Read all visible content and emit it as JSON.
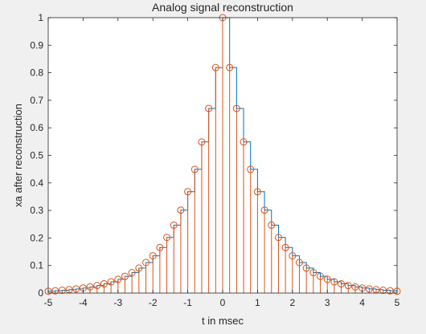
{
  "figure": {
    "background": "#f0f0f0",
    "axes_background": "#ffffff"
  },
  "chart_data": {
    "type": "line",
    "title": "Analog signal reconstruction",
    "xlabel": "t in msec",
    "ylabel": "xa after reconstruction",
    "xlim": [
      -5,
      5
    ],
    "ylim": [
      0,
      1
    ],
    "xticks": [
      -5,
      -4,
      -3,
      -2,
      -1,
      0,
      1,
      2,
      3,
      4,
      5
    ],
    "xtick_labels": [
      "-5",
      "-4",
      "-3",
      "-2",
      "-1",
      "0",
      "1",
      "2",
      "3",
      "4",
      "5"
    ],
    "yticks": [
      0,
      0.1,
      0.2,
      0.3,
      0.4,
      0.5,
      0.6,
      0.7,
      0.8,
      0.9,
      1
    ],
    "ytick_labels": [
      "0",
      "0.1",
      "0.2",
      "0.3",
      "0.4",
      "0.5",
      "0.6",
      "0.7",
      "0.8",
      "0.9",
      "1"
    ],
    "grid": false,
    "box": true,
    "series": [
      {
        "style": "stairs",
        "color": "#0072bd",
        "x": [
          -5,
          -4.8,
          -4.6,
          -4.4,
          -4.2,
          -4,
          -3.8,
          -3.6,
          -3.4,
          -3.2,
          -3,
          -2.8,
          -2.6,
          -2.4,
          -2.2,
          -2,
          -1.8,
          -1.6,
          -1.4,
          -1.2,
          -1,
          -0.8,
          -0.6,
          -0.4,
          -0.2,
          0,
          0.2,
          0.4,
          0.6,
          0.8,
          1,
          1.2,
          1.4,
          1.6,
          1.8,
          2,
          2.2,
          2.4,
          2.6,
          2.8,
          3,
          3.2,
          3.4,
          3.6,
          3.8,
          4,
          4.2,
          4.4,
          4.6,
          4.8,
          5
        ],
        "y": [
          0.0067,
          0.0082,
          0.0101,
          0.0123,
          0.015,
          0.0183,
          0.0224,
          0.0273,
          0.0334,
          0.0408,
          0.0498,
          0.0608,
          0.0743,
          0.0907,
          0.1108,
          0.1353,
          0.1653,
          0.2019,
          0.2466,
          0.3012,
          0.3679,
          0.4493,
          0.5488,
          0.6703,
          0.8187,
          1,
          0.8187,
          0.6703,
          0.5488,
          0.4493,
          0.3679,
          0.3012,
          0.2466,
          0.2019,
          0.1653,
          0.1353,
          0.1108,
          0.0907,
          0.0743,
          0.0608,
          0.0498,
          0.0408,
          0.0334,
          0.0273,
          0.0224,
          0.0183,
          0.015,
          0.0123,
          0.0101,
          0.0082,
          0.0067
        ]
      },
      {
        "style": "stem",
        "color": "#d95319",
        "marker": "circle",
        "x": [
          -5,
          -4.8,
          -4.6,
          -4.4,
          -4.2,
          -4,
          -3.8,
          -3.6,
          -3.4,
          -3.2,
          -3,
          -2.8,
          -2.6,
          -2.4,
          -2.2,
          -2,
          -1.8,
          -1.6,
          -1.4,
          -1.2,
          -1,
          -0.8,
          -0.6,
          -0.4,
          -0.2,
          0,
          0.2,
          0.4,
          0.6,
          0.8,
          1,
          1.2,
          1.4,
          1.6,
          1.8,
          2,
          2.2,
          2.4,
          2.6,
          2.8,
          3,
          3.2,
          3.4,
          3.6,
          3.8,
          4,
          4.2,
          4.4,
          4.6,
          4.8,
          5
        ],
        "y": [
          0.0067,
          0.0082,
          0.0101,
          0.0123,
          0.015,
          0.0183,
          0.0224,
          0.0273,
          0.0334,
          0.0408,
          0.0498,
          0.0608,
          0.0743,
          0.0907,
          0.1108,
          0.1353,
          0.1653,
          0.2019,
          0.2466,
          0.3012,
          0.3679,
          0.4493,
          0.5488,
          0.6703,
          0.8187,
          1,
          0.8187,
          0.6703,
          0.5488,
          0.4493,
          0.3679,
          0.3012,
          0.2466,
          0.2019,
          0.1653,
          0.1353,
          0.1108,
          0.0907,
          0.0743,
          0.0608,
          0.0498,
          0.0408,
          0.0334,
          0.0273,
          0.0224,
          0.0183,
          0.015,
          0.0123,
          0.0101,
          0.0082,
          0.0067
        ]
      }
    ]
  }
}
